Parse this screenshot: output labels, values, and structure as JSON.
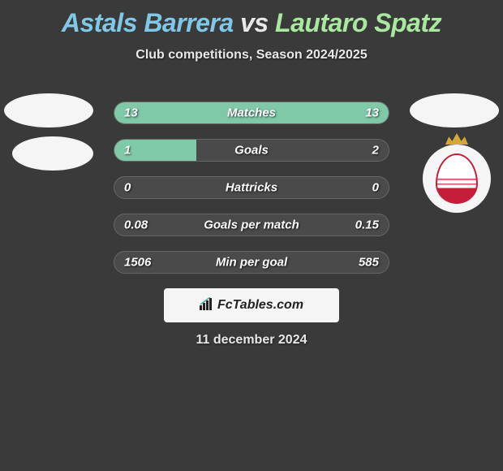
{
  "header": {
    "player1_name": "Astals Barrera",
    "vs_text": "vs",
    "player2_name": "Lautaro Spatz",
    "subtitle": "Club competitions, Season 2024/2025",
    "player1_color": "#7fc8e8",
    "player2_color": "#a8e89f",
    "vs_color": "#e8e8e8"
  },
  "stats": {
    "type": "horizontal-comparison-bars",
    "bar_fill_color": "#7fc8a8",
    "bar_bg_color": "#4a4a4a",
    "bar_border_color": "#666666",
    "text_color": "#ffffff",
    "rows": [
      {
        "label": "Matches",
        "left_val": "13",
        "right_val": "13",
        "left_fill_pct": 50,
        "right_fill_pct": 50
      },
      {
        "label": "Goals",
        "left_val": "1",
        "right_val": "2",
        "left_fill_pct": 30,
        "right_fill_pct": 0
      },
      {
        "label": "Hattricks",
        "left_val": "0",
        "right_val": "0",
        "left_fill_pct": 0,
        "right_fill_pct": 0
      },
      {
        "label": "Goals per match",
        "left_val": "0.08",
        "right_val": "0.15",
        "left_fill_pct": 0,
        "right_fill_pct": 0
      },
      {
        "label": "Min per goal",
        "left_val": "1506",
        "right_val": "585",
        "left_fill_pct": 0,
        "right_fill_pct": 0
      }
    ]
  },
  "branding": {
    "text": "FcTables.com"
  },
  "footer": {
    "date": "11 december 2024"
  },
  "colors": {
    "background": "#3a3a3a",
    "brand_bg": "#f5f5f5",
    "team_badge_red": "#c41e3a",
    "team_badge_gold": "#d4a838"
  }
}
